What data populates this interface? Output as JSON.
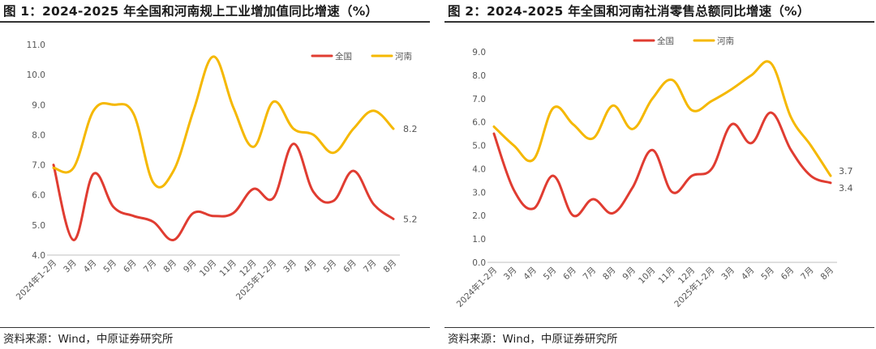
{
  "charts": [
    {
      "title": "图 1：2024-2025 年全国和河南规上工业增加值同比增速（%）",
      "source": "资料来源：Wind，中原证券研究所",
      "chart_data": {
        "type": "line",
        "title": "图 1：2024-2025 年全国和河南规上工业增加值同比增速（%）",
        "xlabel": "",
        "ylabel": "",
        "ylim": [
          4.0,
          11.0
        ],
        "yticks": [
          "4.0",
          "5.0",
          "6.0",
          "7.0",
          "8.0",
          "9.0",
          "10.0",
          "11.0"
        ],
        "categories": [
          "2024年1-2月",
          "3月",
          "4月",
          "5月",
          "6月",
          "7月",
          "8月",
          "9月",
          "10月",
          "11月",
          "12月",
          "2025年1-2月",
          "3月",
          "4月",
          "5月",
          "6月",
          "7月",
          "8月"
        ],
        "series": [
          {
            "name": "全国",
            "color": "#e03c31",
            "values": [
              7.0,
              4.5,
              6.7,
              5.6,
              5.3,
              5.1,
              4.5,
              5.4,
              5.3,
              5.4,
              6.2,
              5.9,
              7.7,
              6.1,
              5.8,
              6.8,
              5.7,
              5.2
            ],
            "end_label": "5.2"
          },
          {
            "name": "河南",
            "color": "#f5b800",
            "values": [
              6.9,
              6.9,
              8.8,
              9.0,
              8.7,
              6.4,
              6.8,
              8.8,
              10.6,
              8.9,
              7.6,
              9.1,
              8.2,
              8.0,
              7.4,
              8.2,
              8.8,
              8.2
            ],
            "end_label": "8.2"
          }
        ],
        "legend": "top-right",
        "grid": false
      }
    },
    {
      "title": "图 2：2024-2025 年全国和河南社消零售总额同比增速（%）",
      "source": "资料来源：Wind，中原证券研究所",
      "chart_data": {
        "type": "line",
        "title": "图 2：2024-2025 年全国和河南社消零售总额同比增速（%）",
        "xlabel": "",
        "ylabel": "",
        "ylim": [
          0.0,
          9.0
        ],
        "yticks": [
          "0.0",
          "1.0",
          "2.0",
          "3.0",
          "4.0",
          "5.0",
          "6.0",
          "7.0",
          "8.0",
          "9.0"
        ],
        "categories": [
          "2024年1-2月",
          "3月",
          "4月",
          "5月",
          "6月",
          "7月",
          "8月",
          "9月",
          "10月",
          "11月",
          "12月",
          "2025年1-2月",
          "3月",
          "4月",
          "5月",
          "6月",
          "7月",
          "8月"
        ],
        "series": [
          {
            "name": "全国",
            "color": "#e03c31",
            "values": [
              5.5,
              3.1,
              2.3,
              3.7,
              2.0,
              2.7,
              2.1,
              3.2,
              4.8,
              3.0,
              3.7,
              4.0,
              5.9,
              5.1,
              6.4,
              4.8,
              3.7,
              3.4
            ],
            "end_label": "3.4"
          },
          {
            "name": "河南",
            "color": "#f5b800",
            "values": [
              5.8,
              5.0,
              4.4,
              6.6,
              5.9,
              5.3,
              6.7,
              5.7,
              7.0,
              7.8,
              6.5,
              6.9,
              7.4,
              8.0,
              8.5,
              6.2,
              5.0,
              3.7
            ],
            "end_label": "3.7"
          }
        ],
        "legend": "top-left",
        "grid": false
      }
    }
  ]
}
